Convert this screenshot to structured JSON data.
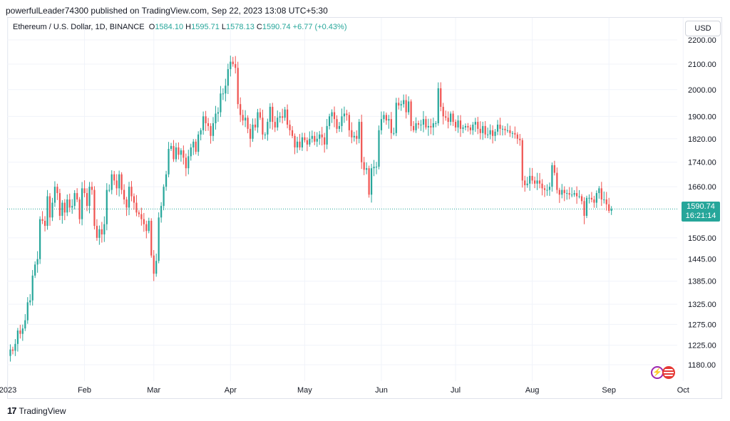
{
  "header": {
    "published_by": "powerfulLeader74300 published on TradingView.com, Sep 22, 2023 13:08 UTC+5:30"
  },
  "legend": {
    "symbol": "Ethereum / U.S. Dollar, 1D, BINANCE",
    "o_label": "O",
    "o_value": "1584.10",
    "h_label": "H",
    "h_value": "1595.71",
    "l_label": "L",
    "l_value": "1578.13",
    "c_label": "C",
    "c_value": "1590.74",
    "change": "+6.77 (+0.43%)"
  },
  "currency_button": "USD",
  "last_price": {
    "price": "1590.74",
    "countdown": "16:21:14"
  },
  "footer": {
    "brand": "TradingView",
    "mark": "17"
  },
  "colors": {
    "up": "#26a69a",
    "down": "#ef5350",
    "grid": "#f0f3fa",
    "axis_text": "#131722"
  },
  "icons": [
    "lightning-icon",
    "us-flag-icon"
  ],
  "chart_data": {
    "type": "candlestick",
    "title": "Ethereum / U.S. Dollar, 1D, BINANCE",
    "yscale": "log",
    "ylim": [
      1130,
      2260
    ],
    "y_ticks": [
      2200,
      2100,
      2000,
      1900,
      1820,
      1740,
      1660,
      1505,
      1445,
      1385,
      1325,
      1275,
      1225,
      1180
    ],
    "y_tick_labels": [
      "2200.00",
      "2100.00",
      "2000.00",
      "1900.00",
      "1820.00",
      "1740.00",
      "1660.00",
      "1505.00",
      "1445.00",
      "1385.00",
      "1325.00",
      "1275.00",
      "1225.00",
      "1180.00"
    ],
    "x_ticks": [
      "2023",
      "Feb",
      "Mar",
      "Apr",
      "May",
      "Jun",
      "Jul",
      "Aug",
      "Sep",
      "Oct"
    ],
    "x_tick_days": [
      0,
      31,
      59,
      90,
      120,
      151,
      181,
      212,
      243,
      273
    ],
    "grid": true,
    "start_date": "2023-01-01",
    "closes": [
      1200,
      1215,
      1212,
      1228,
      1260,
      1252,
      1265,
      1285,
      1330,
      1335,
      1400,
      1430,
      1445,
      1560,
      1555,
      1540,
      1630,
      1565,
      1610,
      1660,
      1640,
      1570,
      1610,
      1580,
      1620,
      1595,
      1600,
      1640,
      1620,
      1560,
      1655,
      1640,
      1600,
      1660,
      1650,
      1540,
      1505,
      1530,
      1515,
      1545,
      1650,
      1650,
      1700,
      1680,
      1655,
      1700,
      1650,
      1620,
      1595,
      1660,
      1630,
      1610,
      1580,
      1575,
      1560,
      1545,
      1525,
      1555,
      1455,
      1405,
      1440,
      1565,
      1600,
      1660,
      1700,
      1785,
      1795,
      1750,
      1790,
      1765,
      1780,
      1755,
      1720,
      1760,
      1790,
      1810,
      1775,
      1835,
      1850,
      1900,
      1875,
      1865,
      1830,
      1875,
      1910,
      1915,
      1985,
      1985,
      2015,
      2080,
      2110,
      2100,
      2085,
      1945,
      1905,
      1885,
      1895,
      1855,
      1820,
      1870,
      1860,
      1915,
      1895,
      1835,
      1835,
      1880,
      1935,
      1880,
      1860,
      1895,
      1900,
      1895,
      1925,
      1870,
      1850,
      1830,
      1790,
      1810,
      1790,
      1825,
      1815,
      1800,
      1820,
      1830,
      1810,
      1820,
      1835,
      1825,
      1800,
      1865,
      1900,
      1915,
      1890,
      1855,
      1865,
      1900,
      1910,
      1905,
      1850,
      1825,
      1830,
      1820,
      1880,
      1740,
      1715,
      1720,
      1635,
      1720,
      1725,
      1725,
      1850,
      1890,
      1905,
      1885,
      1890,
      1840,
      1840,
      1950,
      1940,
      1945,
      1960,
      1915,
      1955,
      1865,
      1850,
      1875,
      1870,
      1870,
      1890,
      1860,
      1865,
      1860,
      1875,
      1875,
      2005,
      1935,
      1900,
      1895,
      1880,
      1910,
      1880,
      1860,
      1885,
      1855,
      1860,
      1865,
      1860,
      1850,
      1870,
      1880,
      1855,
      1840,
      1865,
      1835,
      1835,
      1850,
      1830,
      1845,
      1870,
      1855,
      1855,
      1850,
      1850,
      1840,
      1840,
      1835,
      1820,
      1815,
      1680,
      1665,
      1670,
      1695,
      1680,
      1670,
      1680,
      1670,
      1655,
      1650,
      1650,
      1660,
      1730,
      1705,
      1650,
      1635,
      1650,
      1640,
      1640,
      1635,
      1635,
      1640,
      1630,
      1630,
      1615,
      1570,
      1625,
      1625,
      1620,
      1610,
      1640,
      1655,
      1620,
      1620,
      1605,
      1585,
      1590.74
    ]
  }
}
